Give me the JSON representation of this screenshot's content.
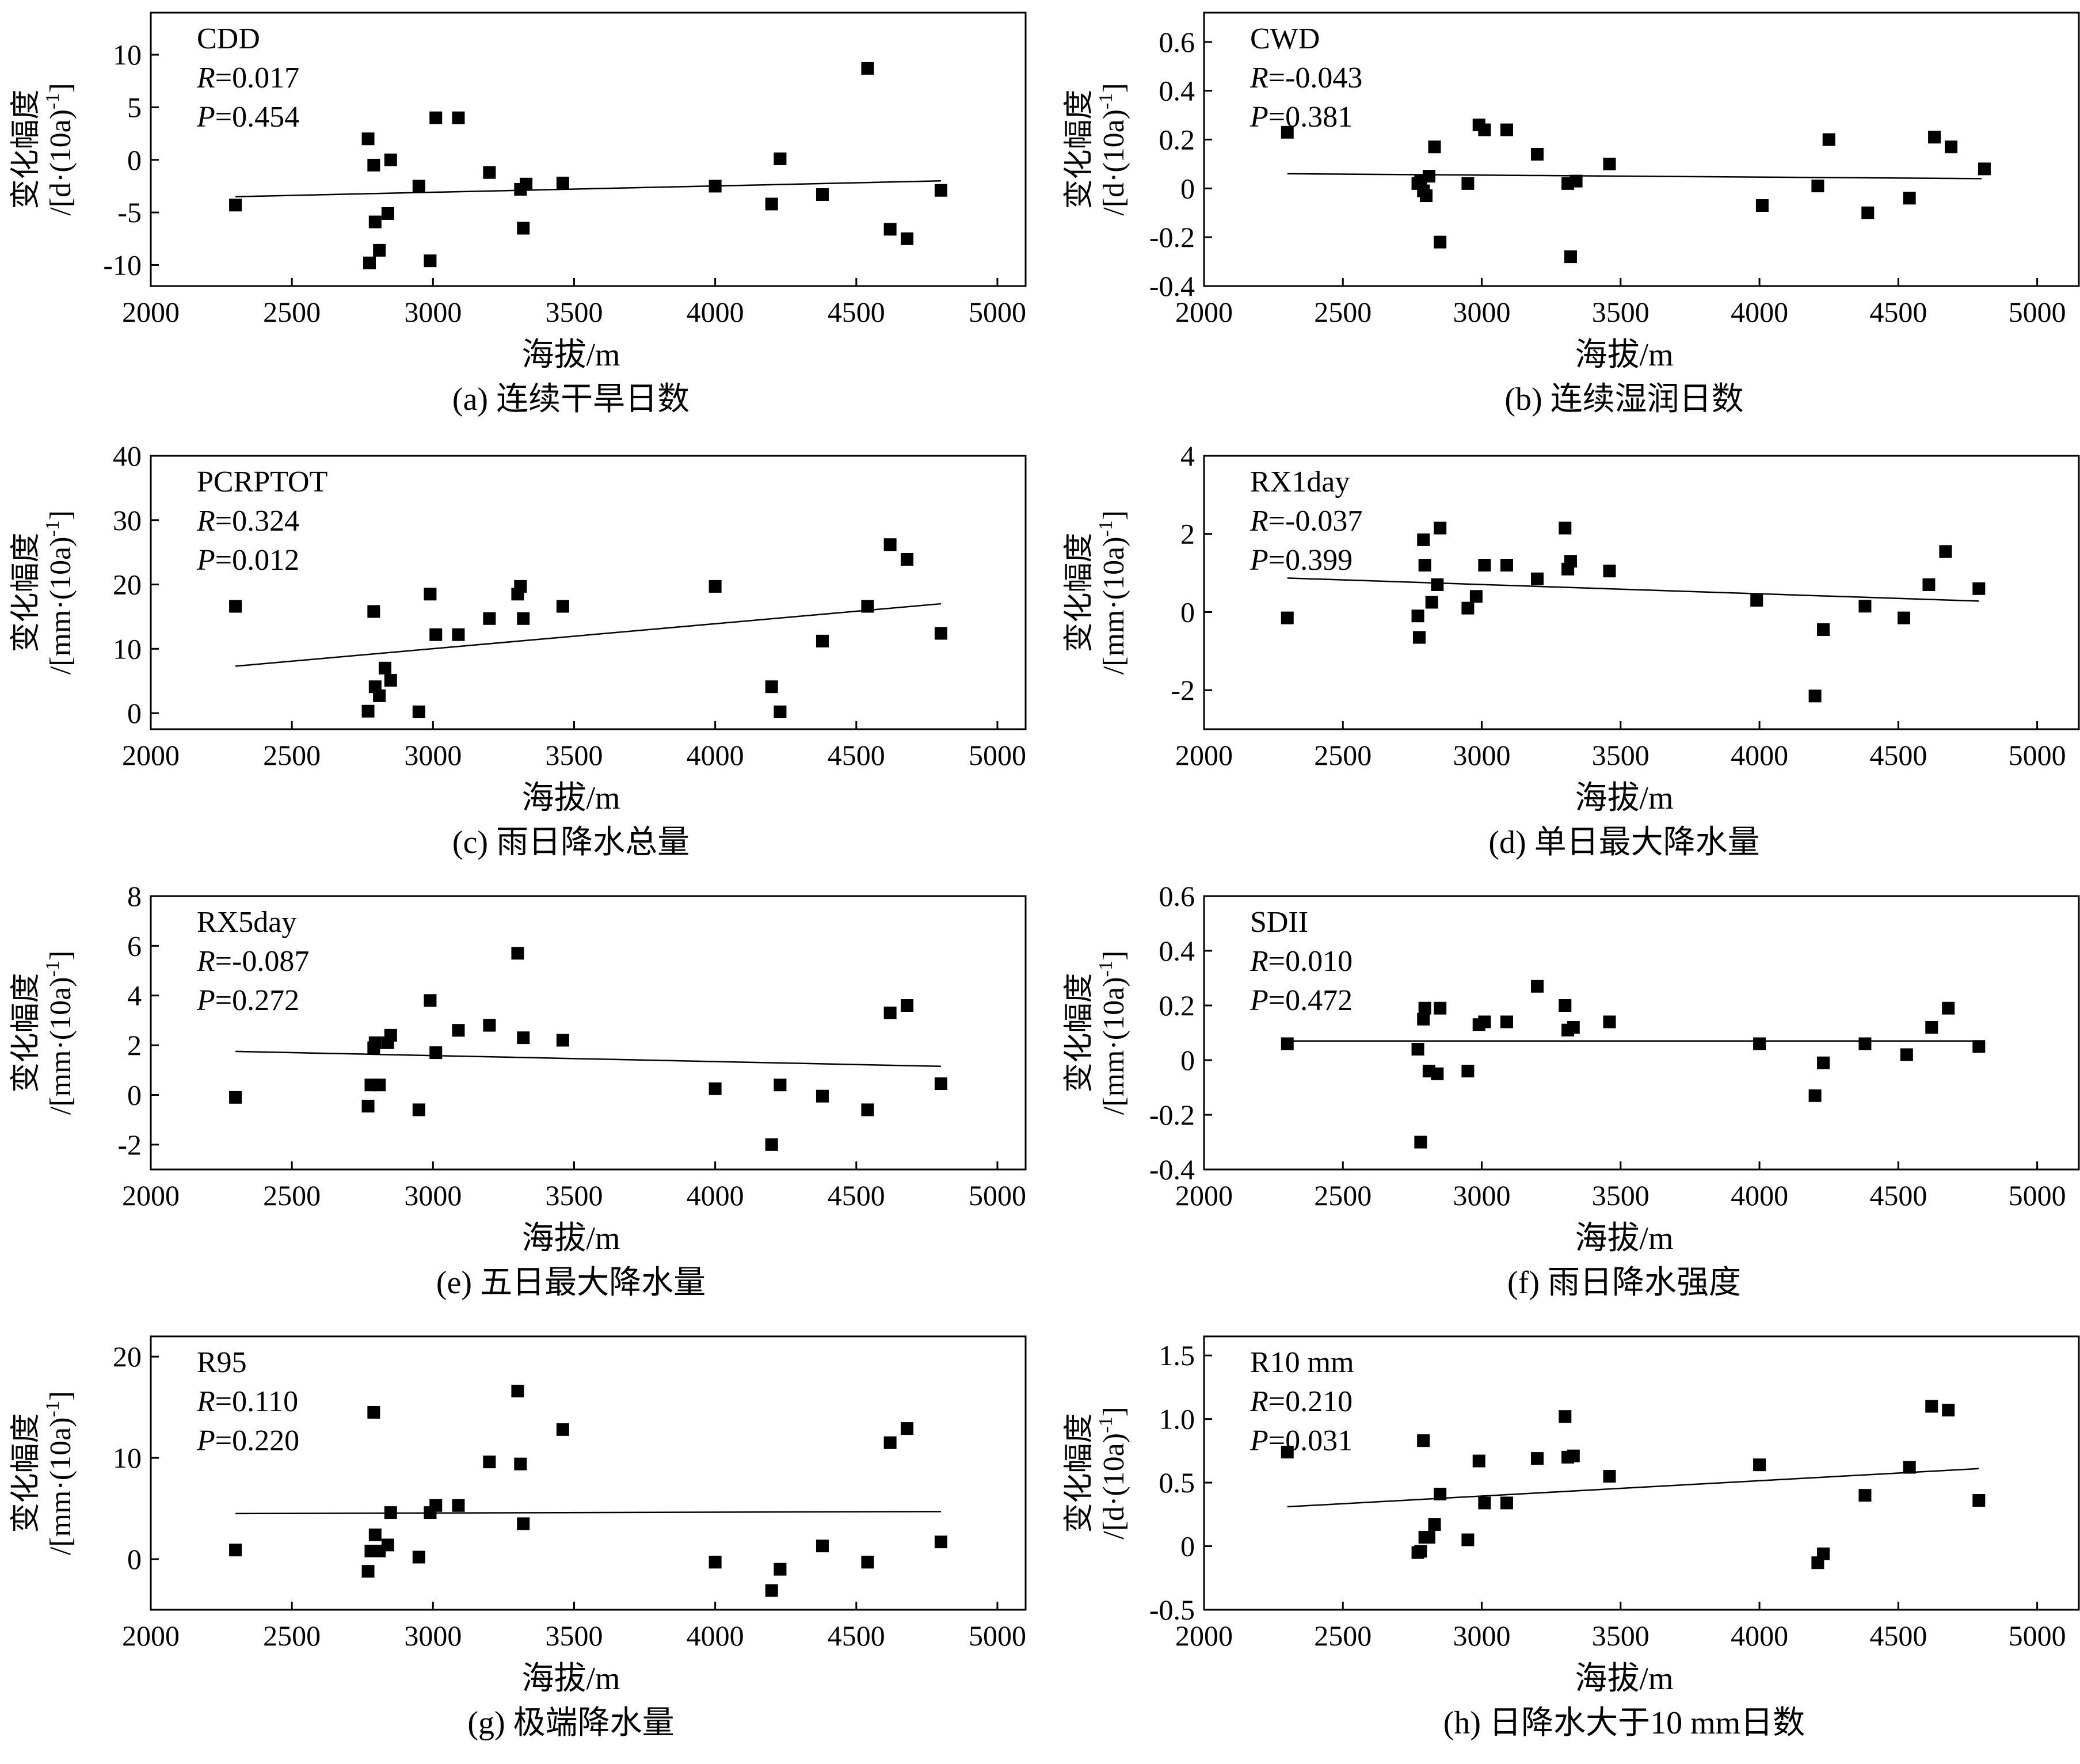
{
  "figure": {
    "xlabel": "海拔/m",
    "x_ticks": [
      "2000",
      "2500",
      "3000",
      "3500",
      "4000",
      "4500",
      "5000"
    ]
  },
  "chart_data": [
    {
      "id": "a",
      "type": "scatter",
      "index_name": "CDD",
      "r_prefix": "R",
      "r_value": "=0.017",
      "p_prefix": "P",
      "p_value": "=0.454",
      "caption": "(a) 连续干旱日数",
      "ylabel_line1": "变化幅度",
      "ylabel_line2": "/[d·(10a)",
      "ylabel_sup": "-1",
      "ylabel_end": "]",
      "xlabel": "海拔/m",
      "xlim": [
        2000,
        5100
      ],
      "ylim": [
        -12,
        14
      ],
      "y_ticks": [
        -10,
        -5,
        0,
        5,
        10
      ],
      "y_tick_labels": [
        "-10",
        "-5",
        "0",
        "5",
        "10"
      ],
      "points": [
        [
          2300,
          -4.3
        ],
        [
          2770,
          2.0
        ],
        [
          2775,
          -9.8
        ],
        [
          2790,
          -0.5
        ],
        [
          2795,
          -5.9
        ],
        [
          2810,
          -8.6
        ],
        [
          2840,
          -5.1
        ],
        [
          2850,
          0.0
        ],
        [
          2950,
          -2.5
        ],
        [
          2990,
          -9.6
        ],
        [
          3010,
          4.0
        ],
        [
          3090,
          4.0
        ],
        [
          3200,
          -1.2
        ],
        [
          3310,
          -2.8
        ],
        [
          3320,
          -6.5
        ],
        [
          3330,
          -2.3
        ],
        [
          3460,
          -2.2
        ],
        [
          4000,
          -2.5
        ],
        [
          4200,
          -4.2
        ],
        [
          4230,
          0.1
        ],
        [
          4380,
          -3.3
        ],
        [
          4540,
          8.7
        ],
        [
          4620,
          -6.6
        ],
        [
          4680,
          -7.5
        ],
        [
          4800,
          -2.9
        ]
      ],
      "trend": [
        [
          2300,
          -3.5
        ],
        [
          4800,
          -2.0
        ]
      ]
    },
    {
      "id": "b",
      "type": "scatter",
      "index_name": "CWD",
      "r_prefix": "R",
      "r_value": "=-0.043",
      "p_prefix": "P",
      "p_value": "=0.381",
      "caption": "(b) 连续湿润日数",
      "ylabel_line1": "变化幅度",
      "ylabel_line2": "/[d·(10a)",
      "ylabel_sup": "-1",
      "ylabel_end": "]",
      "xlabel": "海拔/m",
      "xlim": [
        2000,
        5150
      ],
      "ylim": [
        -0.4,
        0.72
      ],
      "y_ticks": [
        -0.4,
        -0.2,
        0,
        0.2,
        0.4,
        0.6
      ],
      "y_tick_labels": [
        "-0.4",
        "-0.2",
        "0",
        "0.2",
        "0.4",
        "0.6"
      ],
      "points": [
        [
          2300,
          0.23
        ],
        [
          2770,
          0.02
        ],
        [
          2780,
          0.03
        ],
        [
          2790,
          -0.01
        ],
        [
          2800,
          -0.03
        ],
        [
          2810,
          0.05
        ],
        [
          2830,
          0.17
        ],
        [
          2850,
          -0.22
        ],
        [
          2950,
          0.02
        ],
        [
          2990,
          0.26
        ],
        [
          3010,
          0.24
        ],
        [
          3090,
          0.24
        ],
        [
          3200,
          0.14
        ],
        [
          3310,
          0.02
        ],
        [
          3320,
          -0.28
        ],
        [
          3340,
          0.03
        ],
        [
          3460,
          0.1
        ],
        [
          4010,
          -0.07
        ],
        [
          4210,
          0.01
        ],
        [
          4250,
          0.2
        ],
        [
          4390,
          -0.1
        ],
        [
          4540,
          -0.04
        ],
        [
          4630,
          0.21
        ],
        [
          4690,
          0.17
        ],
        [
          4810,
          0.08
        ]
      ],
      "trend": [
        [
          2300,
          0.06
        ],
        [
          4800,
          0.04
        ]
      ]
    },
    {
      "id": "c",
      "type": "scatter",
      "index_name": "PCRPTOT",
      "r_prefix": "R",
      "r_value": "=0.324",
      "p_prefix": "P",
      "p_value": "=0.012",
      "caption": "(c) 雨日降水总量",
      "ylabel_line1": "变化幅度",
      "ylabel_line2": "/[mm·(10a)",
      "ylabel_sup": "-1",
      "ylabel_end": "]",
      "xlabel": "海拔/m",
      "xlim": [
        2000,
        5100
      ],
      "ylim": [
        -2.5,
        40
      ],
      "y_ticks": [
        0,
        10,
        20,
        30,
        40
      ],
      "y_tick_labels": [
        "0",
        "10",
        "20",
        "30",
        "40"
      ],
      "points": [
        [
          2300,
          16.6
        ],
        [
          2770,
          0.3
        ],
        [
          2790,
          15.8
        ],
        [
          2795,
          4.1
        ],
        [
          2810,
          2.7
        ],
        [
          2830,
          7.0
        ],
        [
          2850,
          5.1
        ],
        [
          2950,
          0.2
        ],
        [
          2990,
          18.5
        ],
        [
          3010,
          12.2
        ],
        [
          3090,
          12.2
        ],
        [
          3200,
          14.7
        ],
        [
          3300,
          18.5
        ],
        [
          3310,
          19.7
        ],
        [
          3320,
          14.7
        ],
        [
          3460,
          16.6
        ],
        [
          4000,
          19.7
        ],
        [
          4200,
          4.1
        ],
        [
          4230,
          0.2
        ],
        [
          4380,
          11.2
        ],
        [
          4540,
          16.6
        ],
        [
          4620,
          26.2
        ],
        [
          4680,
          23.9
        ],
        [
          4800,
          12.4
        ]
      ],
      "trend": [
        [
          2300,
          7.3
        ],
        [
          4800,
          17.0
        ]
      ]
    },
    {
      "id": "d",
      "type": "scatter",
      "index_name": "RX1day",
      "r_prefix": "R",
      "r_value": "=-0.037",
      "p_prefix": "P",
      "p_value": "=0.399",
      "caption": "(d) 单日最大降水量",
      "ylabel_line1": "变化幅度",
      "ylabel_line2": "/[mm·(10a)",
      "ylabel_sup": "-1",
      "ylabel_end": "]",
      "xlabel": "海拔/m",
      "xlim": [
        2000,
        5150
      ],
      "ylim": [
        -3.0,
        4.0
      ],
      "y_ticks": [
        -2,
        0,
        2,
        4
      ],
      "y_tick_labels": [
        "-2",
        "0",
        "2",
        "4"
      ],
      "points": [
        [
          2300,
          -0.15
        ],
        [
          2770,
          -0.1
        ],
        [
          2775,
          -0.65
        ],
        [
          2790,
          1.85
        ],
        [
          2795,
          1.2
        ],
        [
          2820,
          0.25
        ],
        [
          2840,
          0.7
        ],
        [
          2850,
          2.15
        ],
        [
          2950,
          0.1
        ],
        [
          2980,
          0.4
        ],
        [
          3010,
          1.2
        ],
        [
          3090,
          1.2
        ],
        [
          3200,
          0.85
        ],
        [
          3300,
          2.15
        ],
        [
          3310,
          1.1
        ],
        [
          3320,
          1.3
        ],
        [
          3460,
          1.05
        ],
        [
          3990,
          0.3
        ],
        [
          4200,
          -2.15
        ],
        [
          4230,
          -0.45
        ],
        [
          4380,
          0.15
        ],
        [
          4520,
          -0.15
        ],
        [
          4610,
          0.7
        ],
        [
          4670,
          1.55
        ],
        [
          4790,
          0.6
        ]
      ],
      "trend": [
        [
          2300,
          0.87
        ],
        [
          4790,
          0.28
        ]
      ]
    },
    {
      "id": "e",
      "type": "scatter",
      "index_name": "RX5day",
      "r_prefix": "R",
      "r_value": "=-0.087",
      "p_prefix": "P",
      "p_value": "=0.272",
      "caption": "(e) 五日最大降水量",
      "ylabel_line1": "变化幅度",
      "ylabel_line2": "/[mm·(10a)",
      "ylabel_sup": "-1",
      "ylabel_end": "]",
      "xlabel": "海拔/m",
      "xlim": [
        2000,
        5100
      ],
      "ylim": [
        -3.0,
        8.0
      ],
      "y_ticks": [
        -2,
        0,
        2,
        4,
        6,
        8
      ],
      "y_tick_labels": [
        "-2",
        "0",
        "2",
        "4",
        "6",
        "8"
      ],
      "points": [
        [
          2300,
          -0.1
        ],
        [
          2770,
          -0.45
        ],
        [
          2780,
          0.4
        ],
        [
          2790,
          1.9
        ],
        [
          2795,
          2.1
        ],
        [
          2810,
          0.4
        ],
        [
          2840,
          2.1
        ],
        [
          2850,
          2.4
        ],
        [
          2950,
          -0.6
        ],
        [
          2990,
          3.8
        ],
        [
          3010,
          1.7
        ],
        [
          3090,
          2.6
        ],
        [
          3200,
          2.8
        ],
        [
          3300,
          5.7
        ],
        [
          3320,
          2.3
        ],
        [
          3460,
          2.2
        ],
        [
          4000,
          0.25
        ],
        [
          4200,
          -2.0
        ],
        [
          4230,
          0.4
        ],
        [
          4380,
          -0.05
        ],
        [
          4540,
          -0.6
        ],
        [
          4620,
          3.3
        ],
        [
          4680,
          3.6
        ],
        [
          4800,
          0.45
        ]
      ],
      "trend": [
        [
          2300,
          1.75
        ],
        [
          4800,
          1.15
        ]
      ]
    },
    {
      "id": "f",
      "type": "scatter",
      "index_name": "SDII",
      "r_prefix": "R",
      "r_value": "=0.010",
      "p_prefix": "P",
      "p_value": "=0.472",
      "caption": "(f) 雨日降水强度",
      "ylabel_line1": "变化幅度",
      "ylabel_line2": "/[mm·(10a)",
      "ylabel_sup": "-1",
      "ylabel_end": "]",
      "xlabel": "海拔/m",
      "xlim": [
        2000,
        5150
      ],
      "ylim": [
        -0.4,
        0.6
      ],
      "y_ticks": [
        -0.4,
        -0.2,
        0,
        0.2,
        0.4,
        0.6
      ],
      "y_tick_labels": [
        "-0.4",
        "-0.2",
        "0",
        "0.2",
        "0.4",
        "0.6"
      ],
      "points": [
        [
          2300,
          0.06
        ],
        [
          2770,
          0.04
        ],
        [
          2780,
          -0.3
        ],
        [
          2790,
          0.15
        ],
        [
          2795,
          0.19
        ],
        [
          2810,
          -0.04
        ],
        [
          2840,
          -0.05
        ],
        [
          2850,
          0.19
        ],
        [
          2950,
          -0.04
        ],
        [
          2990,
          0.13
        ],
        [
          3010,
          0.14
        ],
        [
          3090,
          0.14
        ],
        [
          3200,
          0.27
        ],
        [
          3300,
          0.2
        ],
        [
          3310,
          0.11
        ],
        [
          3330,
          0.12
        ],
        [
          3460,
          0.14
        ],
        [
          4000,
          0.06
        ],
        [
          4200,
          -0.13
        ],
        [
          4230,
          -0.01
        ],
        [
          4380,
          0.06
        ],
        [
          4530,
          0.02
        ],
        [
          4620,
          0.12
        ],
        [
          4680,
          0.19
        ],
        [
          4790,
          0.05
        ]
      ],
      "trend": [
        [
          2300,
          0.07
        ],
        [
          4790,
          0.07
        ]
      ]
    },
    {
      "id": "g",
      "type": "scatter",
      "index_name": "R95",
      "r_prefix": "R",
      "r_value": "=0.110",
      "p_prefix": "P",
      "p_value": "=0.220",
      "caption": "(g) 极端降水量",
      "ylabel_line1": "变化幅度",
      "ylabel_line2": "/[mm·(10a)",
      "ylabel_sup": "-1",
      "ylabel_end": "]",
      "xlabel": "海拔/m",
      "xlim": [
        2000,
        5100
      ],
      "ylim": [
        -5.0,
        22.0
      ],
      "y_ticks": [
        0,
        10,
        20
      ],
      "y_tick_labels": [
        "0",
        "10",
        "20"
      ],
      "points": [
        [
          2300,
          0.9
        ],
        [
          2770,
          -1.2
        ],
        [
          2780,
          0.8
        ],
        [
          2790,
          14.5
        ],
        [
          2795,
          2.4
        ],
        [
          2810,
          0.8
        ],
        [
          2840,
          1.4
        ],
        [
          2850,
          4.6
        ],
        [
          2950,
          0.2
        ],
        [
          2990,
          4.6
        ],
        [
          3010,
          5.3
        ],
        [
          3090,
          5.3
        ],
        [
          3200,
          9.6
        ],
        [
          3300,
          16.6
        ],
        [
          3310,
          9.4
        ],
        [
          3320,
          3.5
        ],
        [
          3460,
          12.8
        ],
        [
          4000,
          -0.3
        ],
        [
          4200,
          -3.1
        ],
        [
          4230,
          -1.0
        ],
        [
          4380,
          1.3
        ],
        [
          4540,
          -0.3
        ],
        [
          4620,
          11.5
        ],
        [
          4680,
          12.9
        ],
        [
          4800,
          1.7
        ]
      ],
      "trend": [
        [
          2300,
          4.5
        ],
        [
          4800,
          4.7
        ]
      ]
    },
    {
      "id": "h",
      "type": "scatter",
      "index_name": "R10 mm",
      "r_prefix": "R",
      "r_value": "=0.210",
      "p_prefix": "P",
      "p_value": "=0.031",
      "caption": "(h) 日降水大于10 mm日数",
      "ylabel_line1": "变化幅度",
      "ylabel_line2": "/[d·(10a)",
      "ylabel_sup": "-1",
      "ylabel_end": "]",
      "xlabel": "海拔/m",
      "xlim": [
        2000,
        5150
      ],
      "ylim": [
        -0.5,
        1.65
      ],
      "y_ticks": [
        -0.5,
        0,
        0.5,
        1.0,
        1.5
      ],
      "y_tick_labels": [
        "-0.5",
        "0",
        "0.5",
        "1.0",
        "1.5"
      ],
      "points": [
        [
          2300,
          0.74
        ],
        [
          2770,
          -0.05
        ],
        [
          2780,
          -0.04
        ],
        [
          2790,
          0.83
        ],
        [
          2795,
          0.07
        ],
        [
          2810,
          0.07
        ],
        [
          2830,
          0.17
        ],
        [
          2850,
          0.41
        ],
        [
          2950,
          0.05
        ],
        [
          2990,
          0.67
        ],
        [
          3010,
          0.34
        ],
        [
          3090,
          0.34
        ],
        [
          3200,
          0.69
        ],
        [
          3300,
          1.02
        ],
        [
          3310,
          0.7
        ],
        [
          3330,
          0.71
        ],
        [
          3460,
          0.55
        ],
        [
          4000,
          0.64
        ],
        [
          4210,
          -0.13
        ],
        [
          4230,
          -0.06
        ],
        [
          4380,
          0.4
        ],
        [
          4540,
          0.62
        ],
        [
          4620,
          1.1
        ],
        [
          4680,
          1.07
        ],
        [
          4790,
          0.36
        ]
      ],
      "trend": [
        [
          2300,
          0.31
        ],
        [
          4790,
          0.61
        ]
      ]
    }
  ]
}
